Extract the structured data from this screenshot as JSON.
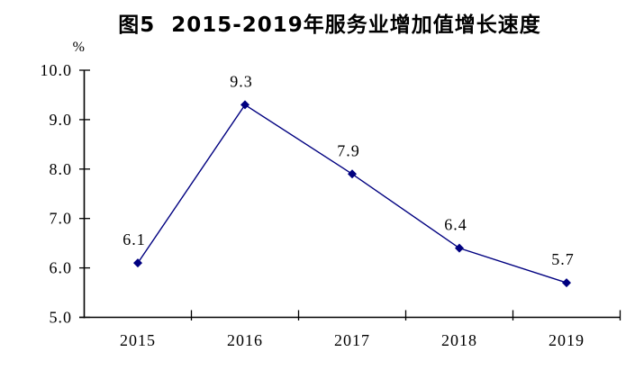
{
  "title": "图5  2015-2019年服务业增加值增长速度",
  "colors": {
    "series": "#000080",
    "axis": "#000000",
    "text": "#000000",
    "background": "#ffffff"
  },
  "chart_data": {
    "type": "line",
    "title": "图5  2015-2019年服务业增加值增长速度",
    "unit_label": "%",
    "categories": [
      "2015",
      "2016",
      "2017",
      "2018",
      "2019"
    ],
    "values": [
      6.1,
      9.3,
      7.9,
      6.4,
      5.7
    ],
    "point_labels": [
      "6.1",
      "9.3",
      "7.9",
      "6.4",
      "5.7"
    ],
    "ylim": [
      5.0,
      10.0
    ],
    "yticks": [
      5.0,
      6.0,
      7.0,
      8.0,
      9.0,
      10.0
    ],
    "ytick_labels": [
      "5.0",
      "6.0",
      "7.0",
      "8.0",
      "9.0",
      "10.0"
    ],
    "xlabel": "",
    "ylabel": "%",
    "marker": "diamond",
    "legend": "none",
    "grid": false
  }
}
